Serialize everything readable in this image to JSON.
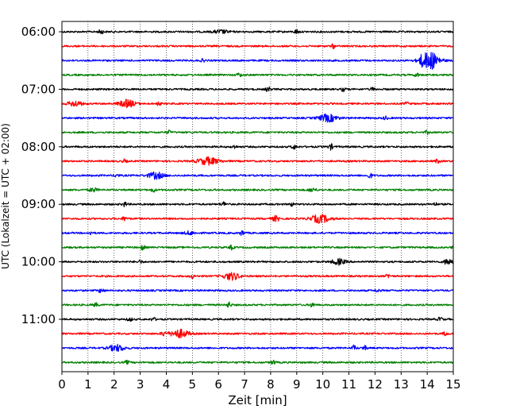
{
  "chart_data": {
    "type": "line",
    "title": "",
    "xlabel": "Zeit  [min]",
    "ylabel": "UTC (Lokalzeit = UTC + 02:00)",
    "xlim": [
      0,
      15
    ],
    "x_ticks": [
      "0",
      "1",
      "2",
      "3",
      "4",
      "5",
      "6",
      "7",
      "8",
      "9",
      "10",
      "11",
      "12",
      "13",
      "14",
      "15"
    ],
    "y_tick_labels": [
      {
        "label": "06:00",
        "row": 0
      },
      {
        "label": "07:00",
        "row": 4
      },
      {
        "label": "08:00",
        "row": 8
      },
      {
        "label": "09:00",
        "row": 12
      },
      {
        "label": "10:00",
        "row": 16
      },
      {
        "label": "11:00",
        "row": 20
      }
    ],
    "grid": "vertical dotted lines at each minute",
    "color_cycle": [
      "#000000",
      "#ff0000",
      "#0000ff",
      "#008000"
    ],
    "traces": [
      {
        "start": "06:00",
        "color": "#000000",
        "events": [
          [
            1.5,
            0.6,
            0.08
          ],
          [
            6.1,
            0.4,
            0.3
          ],
          [
            9.0,
            0.5,
            0.08
          ]
        ]
      },
      {
        "start": "06:15",
        "color": "#ff0000",
        "events": [
          [
            10.4,
            0.5,
            0.06
          ]
        ]
      },
      {
        "start": "06:30",
        "color": "#0000ff",
        "events": [
          [
            5.4,
            0.3,
            0.08
          ],
          [
            14.1,
            2.2,
            0.35
          ],
          [
            13.8,
            0.6,
            0.08
          ]
        ]
      },
      {
        "start": "06:45",
        "color": "#008000",
        "events": [
          [
            6.8,
            0.5,
            0.08
          ],
          [
            13.6,
            0.5,
            0.08
          ]
        ]
      },
      {
        "start": "07:00",
        "color": "#000000",
        "events": [
          [
            7.9,
            0.6,
            0.08
          ],
          [
            10.8,
            0.5,
            0.08
          ],
          [
            11.9,
            0.4,
            0.08
          ]
        ]
      },
      {
        "start": "07:15",
        "color": "#ff0000",
        "events": [
          [
            0.5,
            0.7,
            0.25
          ],
          [
            2.5,
            0.9,
            0.3
          ],
          [
            3.7,
            0.4,
            0.08
          ],
          [
            13.2,
            0.4,
            0.08
          ]
        ]
      },
      {
        "start": "07:30",
        "color": "#0000ff",
        "events": [
          [
            10.2,
            0.9,
            0.35
          ],
          [
            12.4,
            0.4,
            0.08
          ]
        ]
      },
      {
        "start": "07:45",
        "color": "#008000",
        "events": [
          [
            4.1,
            0.4,
            0.08
          ],
          [
            14.0,
            0.4,
            0.08
          ]
        ]
      },
      {
        "start": "08:00",
        "color": "#000000",
        "events": [
          [
            6.6,
            0.4,
            0.08
          ],
          [
            8.9,
            0.5,
            0.1
          ],
          [
            10.3,
            0.7,
            0.08
          ]
        ]
      },
      {
        "start": "08:15",
        "color": "#ff0000",
        "events": [
          [
            5.6,
            0.9,
            0.4
          ],
          [
            2.4,
            0.4,
            0.08
          ],
          [
            14.4,
            0.5,
            0.08
          ]
        ]
      },
      {
        "start": "08:30",
        "color": "#0000ff",
        "events": [
          [
            3.6,
            0.8,
            0.3
          ],
          [
            11.8,
            0.7,
            0.08
          ],
          [
            2.1,
            0.4,
            0.08
          ]
        ]
      },
      {
        "start": "08:45",
        "color": "#008000",
        "events": [
          [
            1.2,
            0.5,
            0.15
          ],
          [
            3.5,
            0.5,
            0.08
          ],
          [
            9.6,
            0.4,
            0.15
          ]
        ]
      },
      {
        "start": "09:00",
        "color": "#000000",
        "events": [
          [
            2.4,
            0.5,
            0.1
          ],
          [
            6.2,
            0.5,
            0.1
          ],
          [
            8.8,
            0.4,
            0.08
          ],
          [
            14.3,
            0.4,
            0.08
          ]
        ]
      },
      {
        "start": "09:15",
        "color": "#ff0000",
        "events": [
          [
            9.9,
            1.0,
            0.35
          ],
          [
            8.2,
            0.6,
            0.15
          ],
          [
            2.4,
            0.5,
            0.08
          ]
        ]
      },
      {
        "start": "09:30",
        "color": "#0000ff",
        "events": [
          [
            6.9,
            0.6,
            0.08
          ],
          [
            4.9,
            0.4,
            0.2
          ],
          [
            1.1,
            0.4,
            0.08
          ]
        ]
      },
      {
        "start": "09:45",
        "color": "#008000",
        "events": [
          [
            3.1,
            0.6,
            0.08
          ],
          [
            6.5,
            0.5,
            0.08
          ],
          [
            15.0,
            0.5,
            0.05
          ]
        ]
      },
      {
        "start": "10:00",
        "color": "#000000",
        "events": [
          [
            10.6,
            0.7,
            0.25
          ],
          [
            14.8,
            0.8,
            0.15
          ],
          [
            3.0,
            0.4,
            0.08
          ]
        ]
      },
      {
        "start": "10:15",
        "color": "#ff0000",
        "events": [
          [
            6.5,
            0.9,
            0.3
          ],
          [
            5.0,
            0.5,
            0.08
          ],
          [
            12.5,
            0.5,
            0.08
          ]
        ]
      },
      {
        "start": "10:30",
        "color": "#0000ff",
        "events": [
          [
            1.5,
            0.5,
            0.1
          ],
          [
            12.1,
            0.4,
            0.08
          ]
        ]
      },
      {
        "start": "10:45",
        "color": "#008000",
        "events": [
          [
            6.4,
            0.7,
            0.08
          ],
          [
            9.6,
            0.6,
            0.08
          ],
          [
            1.3,
            0.4,
            0.1
          ]
        ]
      },
      {
        "start": "11:00",
        "color": "#000000",
        "events": [
          [
            2.6,
            0.5,
            0.08
          ],
          [
            3.5,
            0.4,
            0.08
          ],
          [
            14.5,
            0.5,
            0.08
          ]
        ]
      },
      {
        "start": "11:15",
        "color": "#ff0000",
        "events": [
          [
            4.5,
            1.0,
            0.35
          ],
          [
            3.9,
            0.5,
            0.1
          ],
          [
            14.7,
            0.5,
            0.08
          ]
        ]
      },
      {
        "start": "11:30",
        "color": "#0000ff",
        "events": [
          [
            2.1,
            0.8,
            0.3
          ],
          [
            11.2,
            0.6,
            0.08
          ],
          [
            11.6,
            0.5,
            0.08
          ]
        ]
      },
      {
        "start": "11:45",
        "color": "#008000",
        "events": [
          [
            2.5,
            0.4,
            0.08
          ],
          [
            8.1,
            0.5,
            0.08
          ]
        ]
      }
    ]
  }
}
